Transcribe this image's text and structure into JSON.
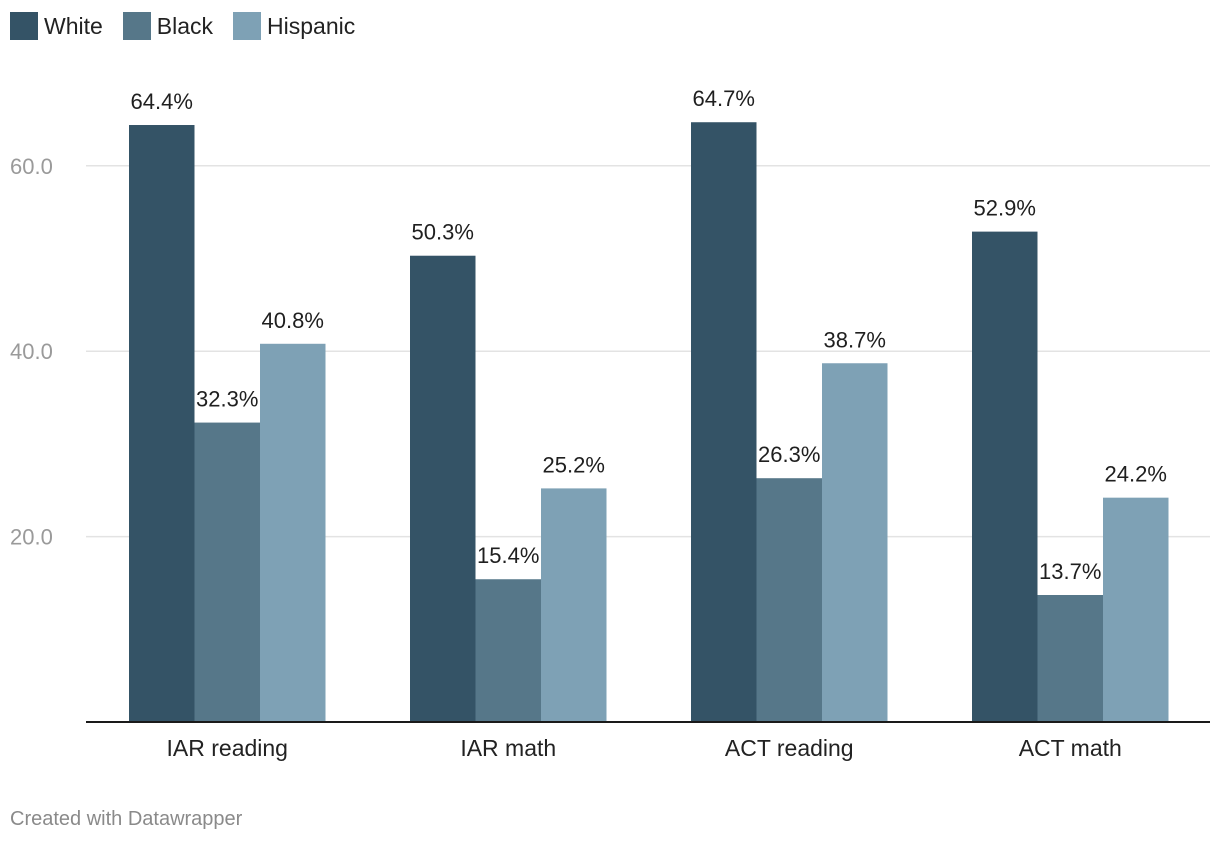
{
  "chart_data": {
    "type": "bar",
    "title": "",
    "xlabel": "",
    "ylabel": "",
    "ylim": [
      0,
      65
    ],
    "y_ticks": [
      20,
      40,
      60
    ],
    "y_tick_labels": [
      "20.0",
      "40.0",
      "60.0"
    ],
    "grid": true,
    "legend_position": "top-left",
    "categories": [
      "IAR reading",
      "IAR math",
      "ACT reading",
      "ACT math"
    ],
    "series": [
      {
        "name": "White",
        "color": "#345366",
        "values": [
          64.4,
          50.3,
          64.7,
          52.9
        ],
        "labels": [
          "64.4%",
          "50.3%",
          "64.7%",
          "52.9%"
        ]
      },
      {
        "name": "Black",
        "color": "#567789",
        "values": [
          32.3,
          15.4,
          26.3,
          13.7
        ],
        "labels": [
          "32.3%",
          "15.4%",
          "26.3%",
          "13.7%"
        ]
      },
      {
        "name": "Hispanic",
        "color": "#7ea1b5",
        "values": [
          40.8,
          25.2,
          38.7,
          24.2
        ],
        "labels": [
          "40.8%",
          "25.2%",
          "38.7%",
          "24.2%"
        ]
      }
    ]
  },
  "footer": {
    "credit": "Created with Datawrapper"
  }
}
